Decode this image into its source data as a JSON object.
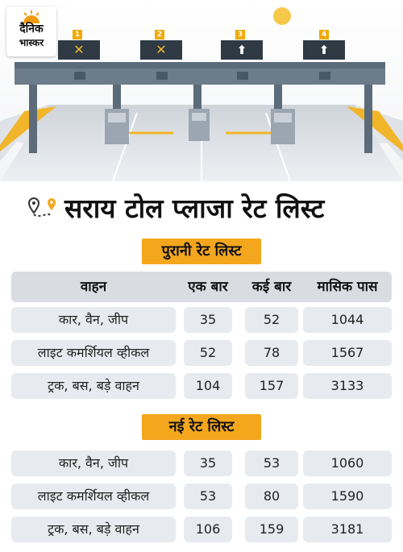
{
  "brand": {
    "line1": "दैनिक",
    "line2": "भास्कर"
  },
  "gantry_signs": [
    {
      "number": "1",
      "symbol": "✕"
    },
    {
      "number": "2",
      "symbol": "✕"
    },
    {
      "number": "3",
      "symbol": "⬆"
    },
    {
      "number": "4",
      "symbol": "⬆"
    }
  ],
  "title": "सराय टोल प्लाजा रेट लिस्ट",
  "columns": [
    "वाहन",
    "एक बार",
    "कई बार",
    "मासिक पास"
  ],
  "old_rates": {
    "label": "पुरानी रेट लिस्ट",
    "rows": [
      {
        "vehicle": "कार, वैन, जीप",
        "one_trip": "35",
        "multi_trip": "52",
        "monthly_pass": "1044"
      },
      {
        "vehicle": "लाइट कमर्शियल व्हीकल",
        "one_trip": "52",
        "multi_trip": "78",
        "monthly_pass": "1567"
      },
      {
        "vehicle": "ट्रक, बस, बड़े वाहन",
        "one_trip": "104",
        "multi_trip": "157",
        "monthly_pass": "3133"
      }
    ]
  },
  "new_rates": {
    "label": "नई रेट लिस्ट",
    "rows": [
      {
        "vehicle": "कार, वैन, जीप",
        "one_trip": "35",
        "multi_trip": "53",
        "monthly_pass": "1060"
      },
      {
        "vehicle": "लाइट कमर्शियल व्हीकल",
        "one_trip": "53",
        "multi_trip": "80",
        "monthly_pass": "1590"
      },
      {
        "vehicle": "ट्रक, बस, बड़े वाहन",
        "one_trip": "106",
        "multi_trip": "159",
        "monthly_pass": "3181"
      }
    ]
  },
  "colors": {
    "accent": "#f4a61d",
    "sign_board": "#2f3a44",
    "gantry": "#5b6b7a",
    "row_bg": "#e7eaee",
    "header_bg": "#d9dde2"
  }
}
